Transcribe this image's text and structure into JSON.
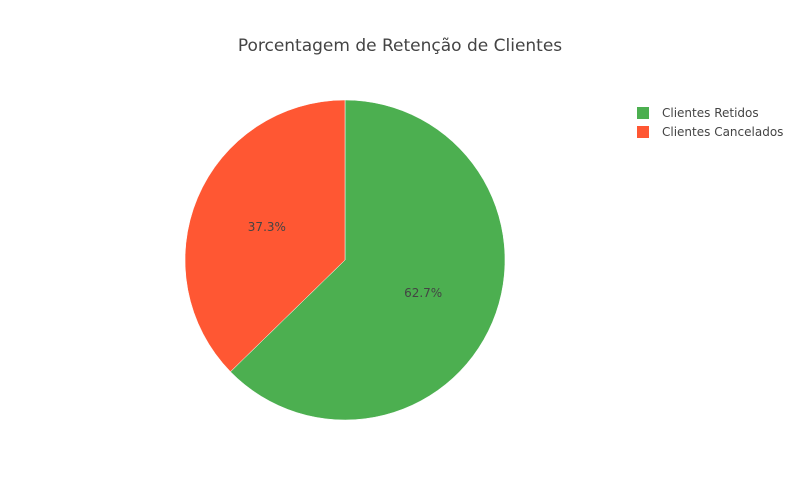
{
  "chart_data": {
    "type": "pie",
    "title": "Porcentagem de Retenção de Clientes",
    "legend_position": "top-right",
    "slices": [
      {
        "label": "Clientes Retidos",
        "value": 62.7,
        "display": "62.7%",
        "color": "#4caf50"
      },
      {
        "label": "Clientes Cancelados",
        "value": 37.3,
        "display": "37.3%",
        "color": "#ff5733"
      }
    ]
  }
}
